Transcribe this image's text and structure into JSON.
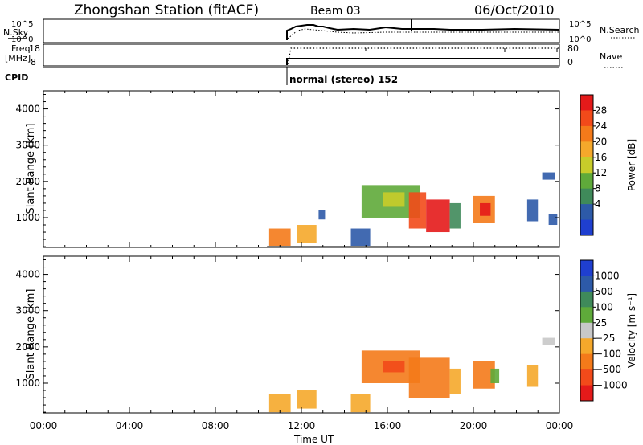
{
  "header": {
    "title": "Zhongshan Station (fitACF)",
    "beam": "Beam 03",
    "date": "06/Oct/2010"
  },
  "summary": {
    "nsky_label": "N.Sky",
    "nsky_ticks": [
      "10^5",
      "10^0"
    ],
    "nsearch_label": "N.Search",
    "nsearch_ticks": [
      "10^5",
      "10^0"
    ],
    "freq_label_1": "Freq.",
    "freq_label_2": "[MHz]",
    "freq_ticks": [
      "18",
      "8"
    ],
    "nave_label": "Nave",
    "nave_ticks": [
      "80",
      "0"
    ],
    "cpid_label": "CPID",
    "cpid_text": "normal (stereo) 152"
  },
  "chart_data": [
    {
      "type": "heatmap",
      "name": "power",
      "ylabel": "Slant Range [km]",
      "yticks": [
        "1000",
        "2000",
        "3000",
        "4000"
      ],
      "ylim": [
        180,
        4500
      ],
      "xlim": [
        0,
        24
      ],
      "colorbar": {
        "label": "Power [dB]",
        "ticks": [
          "28",
          "24",
          "20",
          "16",
          "12",
          "8",
          "4"
        ],
        "colors": [
          "#e41a1a",
          "#f24a1a",
          "#f47a1a",
          "#f5a82b",
          "#c8cc2a",
          "#5faa3a",
          "#3f8a5a",
          "#2d5aa8",
          "#1f3fd0"
        ]
      },
      "patches": [
        {
          "t0": 10.5,
          "t1": 11.5,
          "r0": 200,
          "r1": 700,
          "color": "#f47a1a"
        },
        {
          "t0": 11.8,
          "t1": 12.7,
          "r0": 300,
          "r1": 800,
          "color": "#f5a82b"
        },
        {
          "t0": 12.8,
          "t1": 13.1,
          "r0": 950,
          "r1": 1200,
          "color": "#2d5aa8"
        },
        {
          "t0": 14.3,
          "t1": 15.2,
          "r0": 200,
          "r1": 700,
          "color": "#2d5aa8"
        },
        {
          "t0": 14.8,
          "t1": 17.5,
          "r0": 1000,
          "r1": 1900,
          "color": "#5faa3a"
        },
        {
          "t0": 15.8,
          "t1": 16.8,
          "r0": 1300,
          "r1": 1700,
          "color": "#c8cc2a"
        },
        {
          "t0": 17.0,
          "t1": 17.8,
          "r0": 700,
          "r1": 1700,
          "color": "#f24a1a"
        },
        {
          "t0": 17.8,
          "t1": 18.9,
          "r0": 600,
          "r1": 1500,
          "color": "#e41a1a"
        },
        {
          "t0": 18.9,
          "t1": 19.4,
          "r0": 700,
          "r1": 1400,
          "color": "#3f8a5a"
        },
        {
          "t0": 20.0,
          "t1": 21.0,
          "r0": 850,
          "r1": 1600,
          "color": "#f47a1a"
        },
        {
          "t0": 20.3,
          "t1": 20.8,
          "r0": 1050,
          "r1": 1400,
          "color": "#e41a1a"
        },
        {
          "t0": 22.5,
          "t1": 23.0,
          "r0": 900,
          "r1": 1500,
          "color": "#2d5aa8"
        },
        {
          "t0": 23.2,
          "t1": 23.8,
          "r0": 2050,
          "r1": 2250,
          "color": "#2d5aa8"
        },
        {
          "t0": 23.5,
          "t1": 23.9,
          "r0": 800,
          "r1": 1100,
          "color": "#2d5aa8"
        }
      ]
    },
    {
      "type": "heatmap",
      "name": "velocity",
      "ylabel": "Slant Range [km]",
      "xlabel": "Time UT",
      "yticks": [
        "1000",
        "2000",
        "3000",
        "4000"
      ],
      "xticks": [
        "00:00",
        "04:00",
        "08:00",
        "12:00",
        "16:00",
        "20:00",
        "00:00"
      ],
      "ylim": [
        180,
        4500
      ],
      "xlim": [
        0,
        24
      ],
      "colorbar": {
        "label": "Velocity [m s⁻¹]",
        "ticks": [
          "1000",
          "500",
          "100",
          "25",
          "−25",
          "−100",
          "−500",
          "−1000"
        ],
        "colors": [
          "#1f3fd0",
          "#2d5aa8",
          "#3f8a5a",
          "#5faa3a",
          "#c8c8c8",
          "#f5a82b",
          "#f47a1a",
          "#f24a1a",
          "#e41a1a"
        ]
      },
      "patches": [
        {
          "t0": 10.5,
          "t1": 11.5,
          "r0": 200,
          "r1": 700,
          "color": "#f5a82b"
        },
        {
          "t0": 11.8,
          "t1": 12.7,
          "r0": 300,
          "r1": 800,
          "color": "#f5a82b"
        },
        {
          "t0": 14.3,
          "t1": 15.2,
          "r0": 200,
          "r1": 700,
          "color": "#f5a82b"
        },
        {
          "t0": 14.8,
          "t1": 17.5,
          "r0": 1000,
          "r1": 1900,
          "color": "#f47a1a"
        },
        {
          "t0": 15.8,
          "t1": 16.8,
          "r0": 1300,
          "r1": 1600,
          "color": "#f24a1a"
        },
        {
          "t0": 17.0,
          "t1": 18.9,
          "r0": 600,
          "r1": 1700,
          "color": "#f47a1a"
        },
        {
          "t0": 18.9,
          "t1": 19.4,
          "r0": 700,
          "r1": 1400,
          "color": "#f5a82b"
        },
        {
          "t0": 20.0,
          "t1": 21.0,
          "r0": 850,
          "r1": 1600,
          "color": "#f47a1a"
        },
        {
          "t0": 20.8,
          "t1": 21.2,
          "r0": 1000,
          "r1": 1400,
          "color": "#5faa3a"
        },
        {
          "t0": 22.5,
          "t1": 23.0,
          "r0": 900,
          "r1": 1500,
          "color": "#f5a82b"
        },
        {
          "t0": 23.2,
          "t1": 23.8,
          "r0": 2050,
          "r1": 2250,
          "color": "#c8c8c8"
        }
      ]
    }
  ]
}
